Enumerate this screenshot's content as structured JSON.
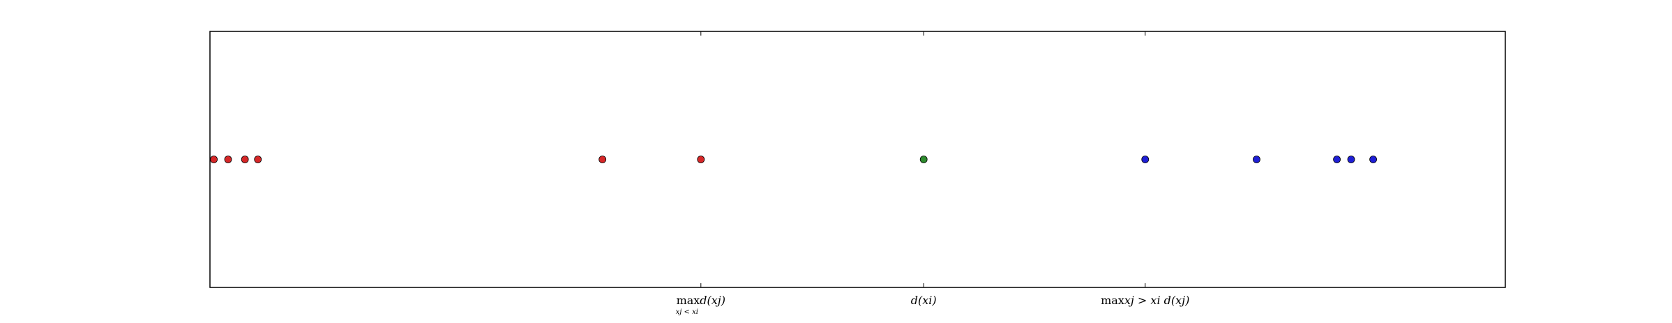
{
  "chart_data": {
    "type": "scatter",
    "title": "",
    "xlabel": "",
    "ylabel": "",
    "xlim": [
      0,
      1
    ],
    "ylim": [
      -1,
      1
    ],
    "grid": false,
    "legend": "none",
    "colors": {
      "left": "#d62728",
      "center": "#2e8b2e",
      "right": "#1f1fd6"
    },
    "series": [
      {
        "group": "left",
        "color": "#d62728",
        "x": [
          0.003,
          0.014,
          0.027,
          0.037,
          0.303,
          0.379
        ],
        "y": [
          0,
          0,
          0,
          0,
          0,
          0
        ]
      },
      {
        "group": "center",
        "color": "#2e8b2e",
        "x": [
          0.551
        ],
        "y": [
          0
        ]
      },
      {
        "group": "right",
        "color": "#1f1fd6",
        "x": [
          0.722,
          0.808,
          0.87,
          0.881,
          0.898
        ],
        "y": [
          0,
          0,
          0,
          0,
          0
        ]
      }
    ],
    "xticks": [
      {
        "value": 0.379,
        "main": "max",
        "mainSub": "xj < xi",
        "rest": "d(xj)"
      },
      {
        "value": 0.551,
        "main": "",
        "mainSub": "",
        "rest": "d(xi)"
      },
      {
        "value": 0.722,
        "main": "max",
        "mainSub": "",
        "rest": "xj > xi d(xj)"
      }
    ]
  }
}
